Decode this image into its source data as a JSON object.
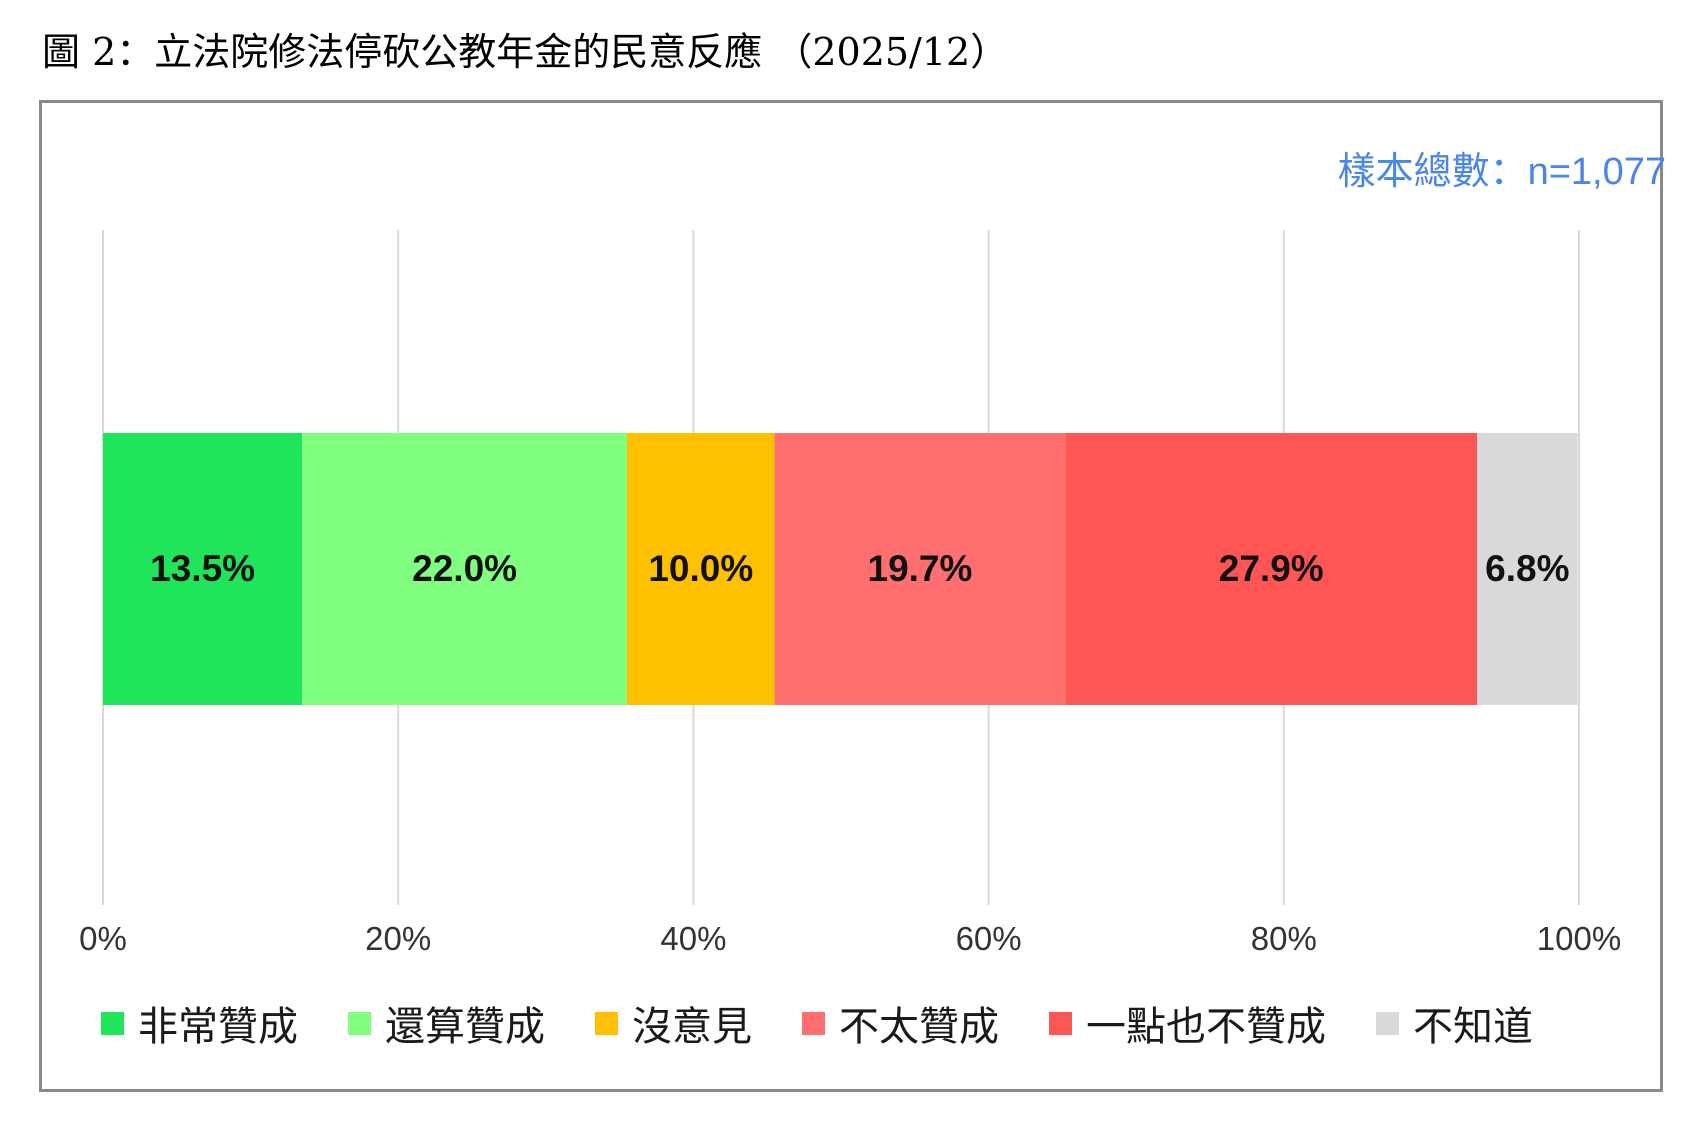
{
  "figure_title": "圖 2：立法院修法停砍公教年金的民意反應 （2025/12）",
  "sample_note": "樣本總數：n=1,077",
  "colors": {
    "frame": "#8a8a8a",
    "grid": "#d9d9d9",
    "sample_note": "#4a86e8"
  },
  "chart_data": {
    "type": "bar",
    "orientation": "horizontal",
    "stacked": true,
    "title": "",
    "xlabel": "",
    "ylabel": "",
    "xlim": [
      0,
      100
    ],
    "x_ticks": [
      "0%",
      "20%",
      "40%",
      "60%",
      "80%",
      "100%"
    ],
    "grid": true,
    "legend_position": "bottom",
    "categories": [
      ""
    ],
    "series": [
      {
        "name": "非常贊成",
        "values": [
          13.5
        ],
        "label": "13.5%",
        "color": "#1fe55a"
      },
      {
        "name": "還算贊成",
        "values": [
          22.0
        ],
        "label": "22.0%",
        "color": "#80ff80"
      },
      {
        "name": "沒意見",
        "values": [
          10.0
        ],
        "label": "10.0%",
        "color": "#ffc000"
      },
      {
        "name": "不太贊成",
        "values": [
          19.7
        ],
        "label": "19.7%",
        "color": "#ff6f6f"
      },
      {
        "name": "一點也不贊成",
        "values": [
          27.9
        ],
        "label": "27.9%",
        "color": "#ff5555"
      },
      {
        "name": "不知道",
        "values": [
          6.8
        ],
        "label": "6.8%",
        "color": "#d9d9d9"
      }
    ]
  }
}
